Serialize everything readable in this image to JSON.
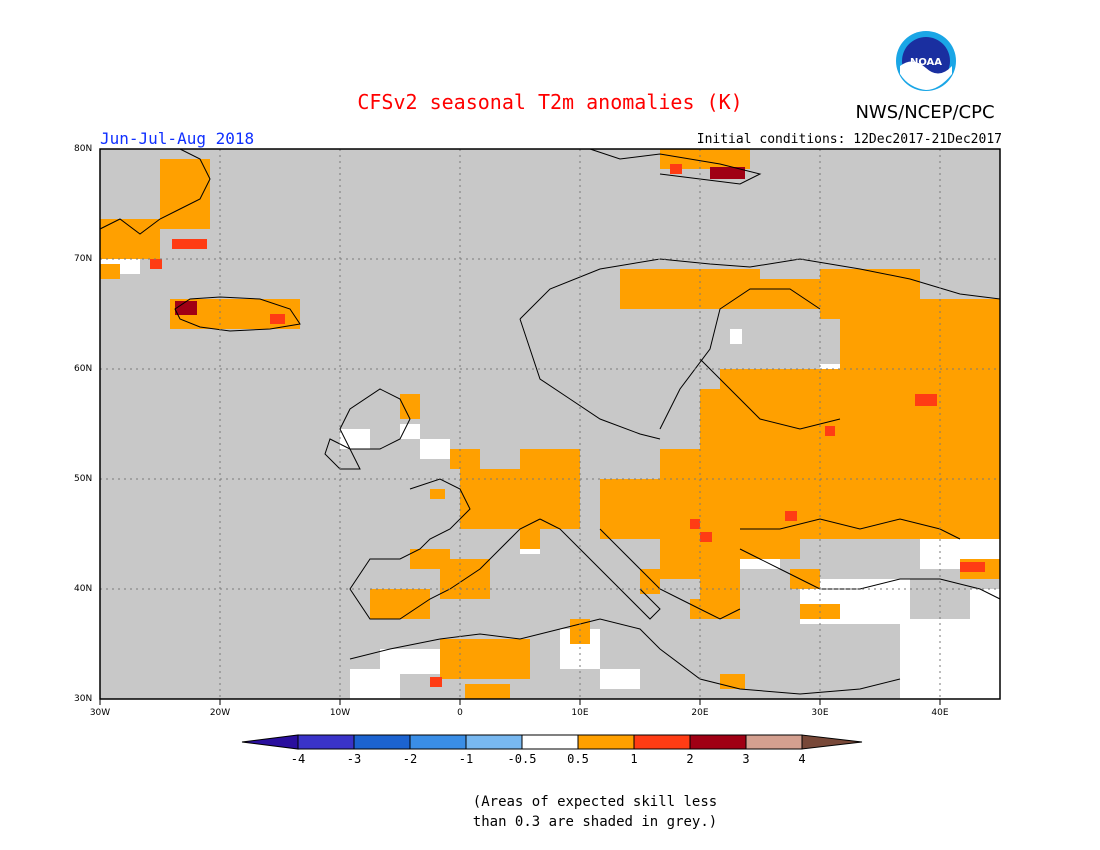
{
  "header": {
    "title": "CFSv2 seasonal T2m anomalies (K)",
    "period": "Jun-Jul-Aug 2018",
    "initial_conditions": "Initial conditions: 12Dec2017-21Dec2017",
    "org": "NWS/NCEP/CPC",
    "logo_text": "NOAA"
  },
  "map": {
    "lat_labels": [
      "80N",
      "70N",
      "60N",
      "50N",
      "40N",
      "30N"
    ],
    "lon_labels": [
      "30W",
      "20W",
      "10W",
      "0",
      "10E",
      "20E",
      "30E",
      "40E"
    ],
    "background_color": "#c8c8c8"
  },
  "legend": {
    "tick_labels": [
      "-4",
      "-3",
      "-2",
      "-1",
      "-0.5",
      "0.5",
      "1",
      "2",
      "3",
      "4"
    ],
    "colors": [
      "#2a0f9e",
      "#3a33c8",
      "#1c63d0",
      "#3a8ee6",
      "#78b8f0",
      "#ffffff",
      "#ffa000",
      "#ff3c14",
      "#a00014",
      "#d4a090",
      "#784838"
    ],
    "note_line1": "(Areas of expected skill less",
    "note_line2": "than 0.3 are shaded in grey.)"
  }
}
